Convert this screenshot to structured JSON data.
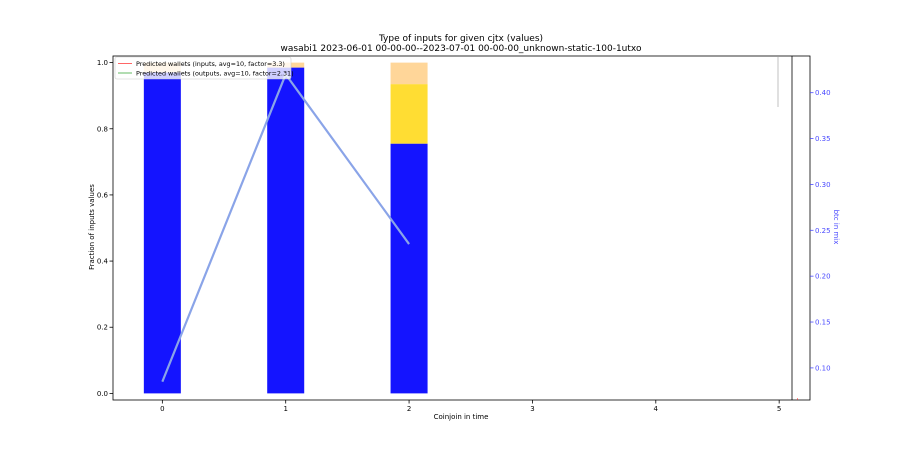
{
  "chart_data": {
    "type": "bar",
    "title": "Type of inputs for given cjtx (values)",
    "subtitle": "wasabi1 2023-06-01 00-00-00--2023-07-01 00-00-00_unknown-static-100-1utxo",
    "xlabel": "Coinjoin in time",
    "ylabel": "Fraction of inputs values",
    "y2label": "btc in mix",
    "x_ticks": [
      0,
      1,
      2,
      3,
      4,
      5
    ],
    "y_ticks": [
      "0.0",
      "0.2",
      "0.4",
      "0.6",
      "0.8",
      "1.0"
    ],
    "y2_ticks": [
      "0.10",
      "0.15",
      "0.20",
      "0.25",
      "0.30",
      "0.35",
      "0.40"
    ],
    "xlim": [
      -0.4,
      5.25
    ],
    "ylim": [
      -0.02,
      1.02
    ],
    "y2lim": [
      0.065,
      0.44
    ],
    "categories": [
      0,
      1,
      2
    ],
    "series": [
      {
        "values": [
          0.97,
          0.985,
          0.755
        ],
        "color": "#1414ff"
      },
      {
        "values": [
          0.0,
          0.0,
          0.18
        ],
        "color": "#ffdd33"
      },
      {
        "values": [
          0.03,
          0.015,
          0.065
        ],
        "color": "#ffd699"
      }
    ],
    "btc_in_mix": {
      "x": [
        0,
        1,
        2
      ],
      "values": [
        0.085,
        0.42,
        0.235
      ],
      "color": "#8aa4e8"
    },
    "legend": {
      "placement": "top-left",
      "entries": [
        {
          "label": "Predicted wallets (inputs, avg=10, factor=3.3)",
          "color": "#ff6666"
        },
        {
          "label": "Predicted wallets (outputs, avg=10, factor=2.31)",
          "color": "#66bb66"
        }
      ]
    },
    "grid": false
  },
  "colors": {
    "y2_axis": "#4a4aff",
    "axis": "#000000"
  }
}
